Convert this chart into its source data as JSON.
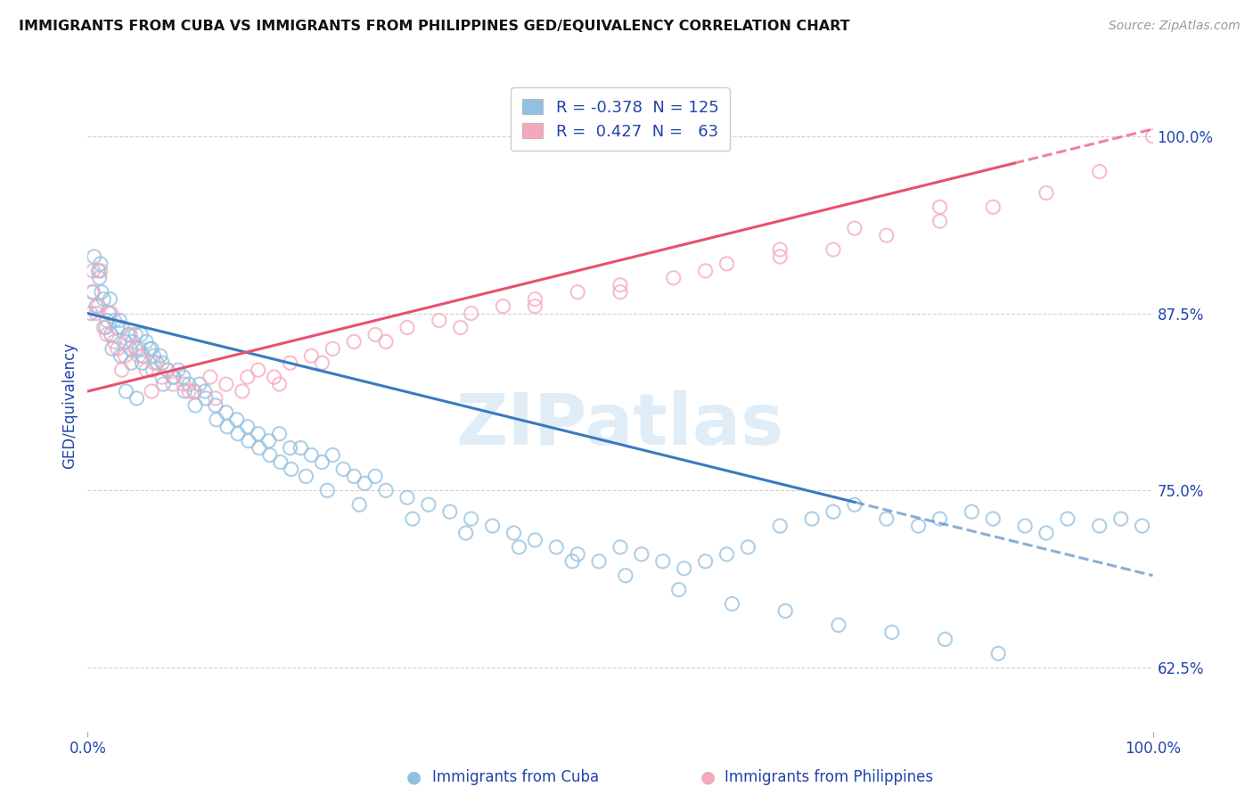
{
  "title": "IMMIGRANTS FROM CUBA VS IMMIGRANTS FROM PHILIPPINES GED/EQUIVALENCY CORRELATION CHART",
  "source": "Source: ZipAtlas.com",
  "ylabel": "GED/Equivalency",
  "right_yticks": [
    62.5,
    75.0,
    87.5,
    100.0
  ],
  "right_ytick_labels": [
    "62.5%",
    "75.0%",
    "87.5%",
    "100.0%"
  ],
  "scatter_cuba_color": "#92c0e0",
  "scatter_phil_color": "#f4a8bc",
  "line_cuba_color": "#3a7abf",
  "line_phil_color": "#e85070",
  "background_color": "#ffffff",
  "grid_color": "#d0d0d0",
  "text_color_blue": "#2244aa",
  "text_color_dark": "#111111",
  "watermark_color": "#c8dff0",
  "R_cuba": -0.378,
  "N_cuba": 125,
  "R_phil": 0.427,
  "N_phil": 63,
  "xlim": [
    0,
    100
  ],
  "ylim": [
    58,
    104
  ],
  "cuba_line_x0": 0,
  "cuba_line_y0": 87.5,
  "cuba_line_x1": 100,
  "cuba_line_y1": 69.0,
  "cuba_solid_end": 72,
  "phil_line_x0": 0,
  "phil_line_y0": 82.0,
  "phil_line_x1": 100,
  "phil_line_y1": 100.5,
  "phil_solid_end": 87,
  "cuba_x": [
    0.3,
    0.5,
    0.6,
    0.8,
    1.0,
    1.2,
    1.5,
    1.7,
    1.8,
    2.0,
    2.2,
    2.5,
    2.8,
    3.0,
    3.2,
    3.5,
    3.8,
    4.0,
    4.2,
    4.5,
    4.8,
    5.0,
    5.2,
    5.5,
    5.8,
    6.0,
    6.2,
    6.5,
    6.8,
    7.0,
    7.5,
    8.0,
    8.5,
    9.0,
    9.5,
    10.0,
    10.5,
    11.0,
    12.0,
    13.0,
    14.0,
    15.0,
    16.0,
    17.0,
    18.0,
    19.0,
    20.0,
    21.0,
    22.0,
    23.0,
    24.0,
    25.0,
    26.0,
    27.0,
    28.0,
    30.0,
    32.0,
    34.0,
    36.0,
    38.0,
    40.0,
    42.0,
    44.0,
    46.0,
    48.0,
    50.0,
    52.0,
    54.0,
    56.0,
    58.0,
    60.0,
    62.0,
    65.0,
    68.0,
    70.0,
    72.0,
    75.0,
    78.0,
    80.0,
    83.0,
    85.0,
    88.0,
    90.0,
    92.0,
    95.0,
    97.0,
    99.0,
    1.1,
    1.3,
    2.1,
    2.3,
    3.1,
    3.6,
    4.1,
    4.6,
    5.1,
    6.1,
    7.1,
    8.1,
    9.1,
    10.1,
    11.1,
    12.1,
    13.1,
    14.1,
    15.1,
    16.1,
    17.1,
    18.1,
    19.1,
    20.5,
    22.5,
    25.5,
    30.5,
    35.5,
    40.5,
    45.5,
    50.5,
    55.5,
    60.5,
    65.5,
    70.5,
    75.5,
    80.5,
    85.5
  ],
  "cuba_y": [
    87.5,
    89.0,
    91.5,
    88.0,
    90.5,
    91.0,
    88.5,
    86.5,
    87.0,
    87.5,
    86.0,
    87.0,
    86.5,
    87.0,
    86.5,
    85.5,
    86.0,
    85.0,
    85.5,
    86.0,
    85.0,
    86.0,
    84.5,
    85.5,
    85.0,
    85.0,
    84.5,
    84.0,
    84.5,
    84.0,
    83.5,
    83.0,
    83.5,
    83.0,
    82.5,
    82.0,
    82.5,
    82.0,
    81.0,
    80.5,
    80.0,
    79.5,
    79.0,
    78.5,
    79.0,
    78.0,
    78.0,
    77.5,
    77.0,
    77.5,
    76.5,
    76.0,
    75.5,
    76.0,
    75.0,
    74.5,
    74.0,
    73.5,
    73.0,
    72.5,
    72.0,
    71.5,
    71.0,
    70.5,
    70.0,
    71.0,
    70.5,
    70.0,
    69.5,
    70.0,
    70.5,
    71.0,
    72.5,
    73.0,
    73.5,
    74.0,
    73.0,
    72.5,
    73.0,
    73.5,
    73.0,
    72.5,
    72.0,
    73.0,
    72.5,
    73.0,
    72.5,
    90.0,
    89.0,
    88.5,
    85.0,
    84.5,
    82.0,
    84.0,
    81.5,
    84.0,
    83.5,
    82.5,
    83.0,
    82.0,
    81.0,
    81.5,
    80.0,
    79.5,
    79.0,
    78.5,
    78.0,
    77.5,
    77.0,
    76.5,
    76.0,
    75.0,
    74.0,
    73.0,
    72.0,
    71.0,
    70.0,
    69.0,
    68.0,
    67.0,
    66.5,
    65.5,
    65.0,
    64.5,
    63.5
  ],
  "phil_x": [
    0.4,
    0.8,
    1.2,
    1.8,
    2.2,
    2.8,
    3.5,
    4.0,
    4.8,
    5.5,
    6.2,
    7.0,
    8.0,
    9.0,
    10.0,
    11.5,
    13.0,
    14.5,
    16.0,
    17.5,
    19.0,
    21.0,
    23.0,
    25.0,
    27.0,
    30.0,
    33.0,
    36.0,
    39.0,
    42.0,
    46.0,
    50.0,
    55.0,
    60.0,
    65.0,
    70.0,
    75.0,
    80.0,
    85.0,
    90.0,
    95.0,
    100.0,
    0.5,
    1.0,
    1.5,
    2.5,
    3.2,
    4.5,
    6.0,
    7.5,
    9.5,
    12.0,
    15.0,
    18.0,
    22.0,
    28.0,
    35.0,
    42.0,
    50.0,
    58.0,
    65.0,
    72.0,
    80.0
  ],
  "phil_y": [
    89.0,
    87.5,
    90.5,
    86.0,
    87.5,
    85.0,
    84.5,
    86.0,
    84.5,
    83.5,
    84.0,
    83.0,
    82.5,
    82.5,
    82.0,
    83.0,
    82.5,
    82.0,
    83.5,
    83.0,
    84.0,
    84.5,
    85.0,
    85.5,
    86.0,
    86.5,
    87.0,
    87.5,
    88.0,
    88.5,
    89.0,
    89.5,
    90.0,
    91.0,
    91.5,
    92.0,
    93.0,
    94.0,
    95.0,
    96.0,
    97.5,
    100.0,
    90.5,
    88.0,
    86.5,
    85.5,
    83.5,
    85.0,
    82.0,
    83.5,
    82.0,
    81.5,
    83.0,
    82.5,
    84.0,
    85.5,
    86.5,
    88.0,
    89.0,
    90.5,
    92.0,
    93.5,
    95.0
  ]
}
